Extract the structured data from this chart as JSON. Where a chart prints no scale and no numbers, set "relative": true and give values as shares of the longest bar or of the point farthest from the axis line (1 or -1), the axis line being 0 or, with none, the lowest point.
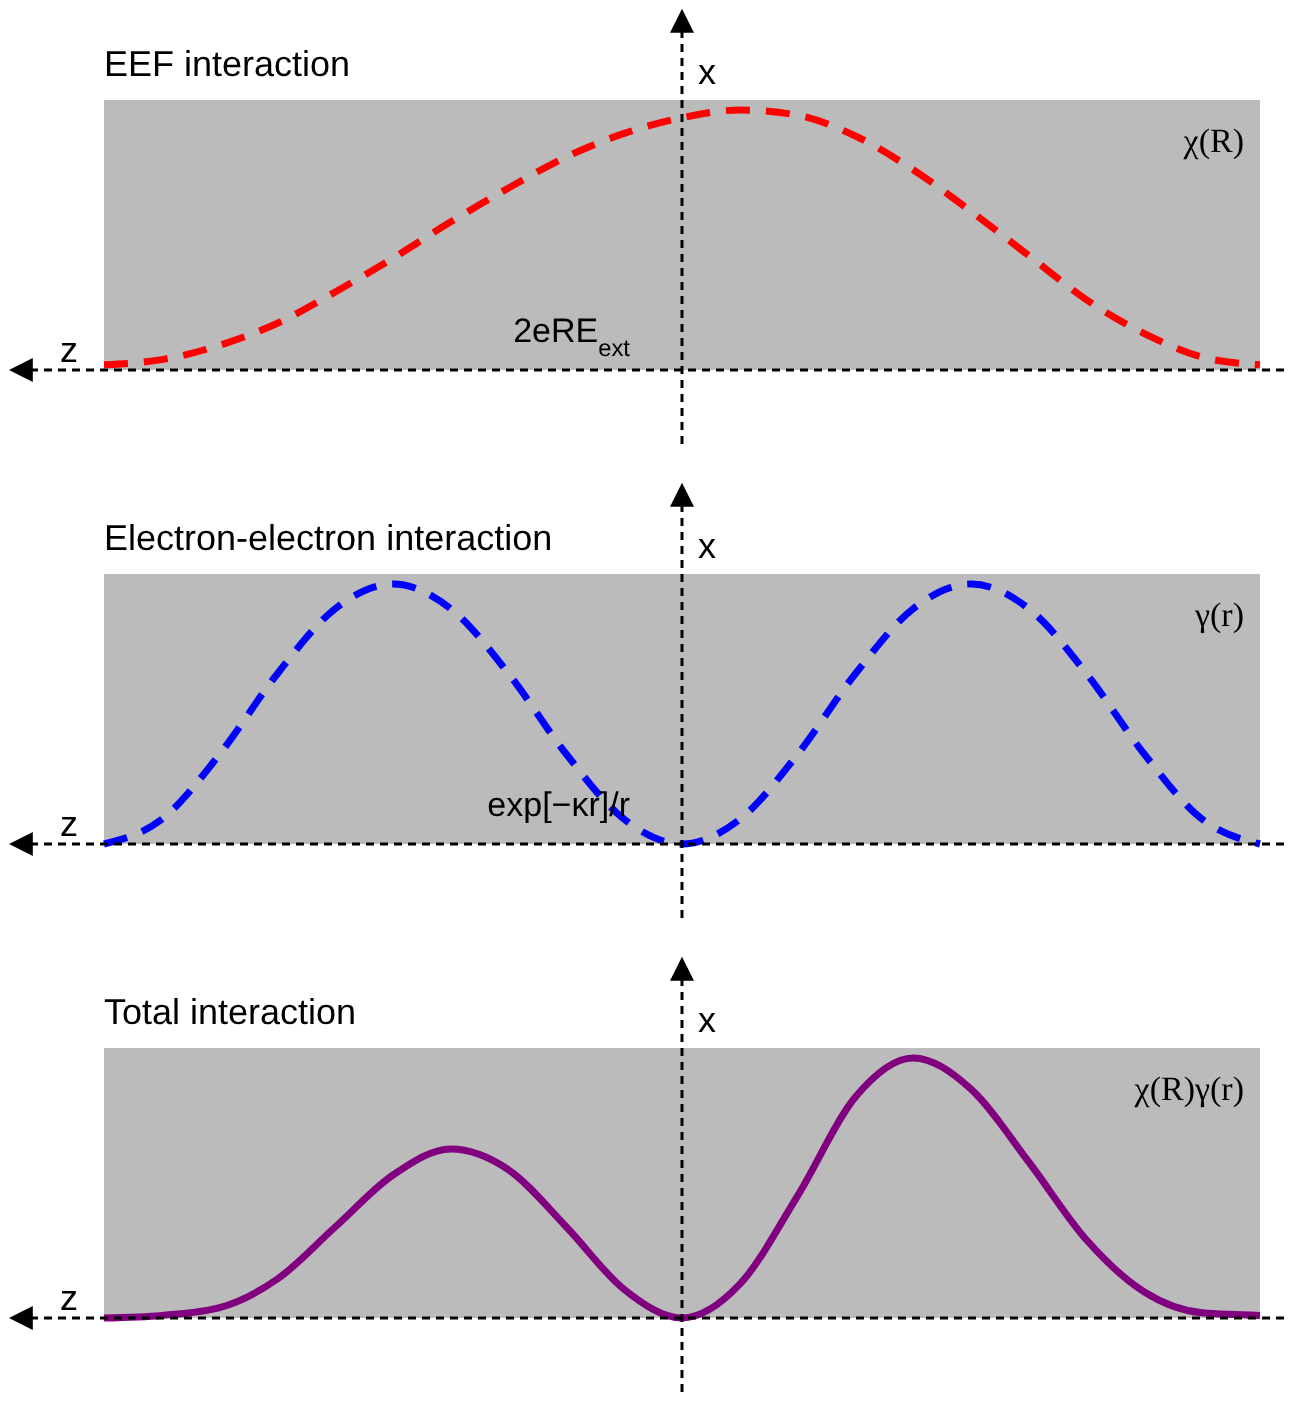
{
  "chart_data": [
    {
      "type": "line",
      "title": "EEF interaction",
      "xlabel": "z",
      "ylabel": "x",
      "relative": true,
      "line_style": "dashed",
      "annotations": [
        "χ(R)",
        "2eRE$_{ext}$"
      ],
      "categories": [
        null,
        null,
        null,
        null,
        null,
        null,
        null,
        null,
        null,
        null,
        null,
        null,
        null,
        null,
        null,
        null,
        null,
        null,
        null,
        null,
        null
      ],
      "series": [
        {
          "color": "#ff0000",
          "values": [
            0.02,
            0.04,
            0.095,
            0.18,
            0.3,
            0.43,
            0.57,
            0.7,
            0.82,
            0.91,
            0.97,
            1.0,
            0.98,
            0.9,
            0.77,
            0.61,
            0.44,
            0.27,
            0.14,
            0.05,
            0.02
          ]
        }
      ]
    },
    {
      "type": "line",
      "title": "Electron-electron interaction",
      "xlabel": "z",
      "ylabel": "x",
      "relative": true,
      "line_style": "dashed",
      "annotations": [
        "γ(r)",
        "exp[−κr]/r"
      ],
      "categories": [
        null,
        null,
        null,
        null,
        null,
        null,
        null,
        null,
        null,
        null,
        null,
        null,
        null,
        null,
        null,
        null,
        null,
        null,
        null,
        null,
        null
      ],
      "series": [
        {
          "color": "#0000ff",
          "values": [
            0,
            0.095,
            0.345,
            0.655,
            0.905,
            1,
            0.905,
            0.655,
            0.345,
            0.095,
            0,
            0.095,
            0.345,
            0.655,
            0.905,
            1,
            0.905,
            0.655,
            0.345,
            0.095,
            0
          ]
        }
      ]
    },
    {
      "type": "line",
      "title": "Total interaction",
      "xlabel": "z",
      "ylabel": "x",
      "relative": true,
      "line_style": "solid",
      "annotations": [
        "χ(R)γ(r)"
      ],
      "categories": [
        null,
        null,
        null,
        null,
        null,
        null,
        null,
        null,
        null,
        null,
        null,
        null,
        null,
        null,
        null,
        null,
        null,
        null,
        null,
        null,
        null
      ],
      "series": [
        {
          "color": "#800080",
          "values": [
            0,
            0.01,
            0.04,
            0.15,
            0.35,
            0.55,
            0.65,
            0.57,
            0.35,
            0.11,
            0,
            0.13,
            0.47,
            0.85,
            1,
            0.88,
            0.6,
            0.3,
            0.1,
            0.02,
            0.01
          ]
        }
      ]
    }
  ]
}
